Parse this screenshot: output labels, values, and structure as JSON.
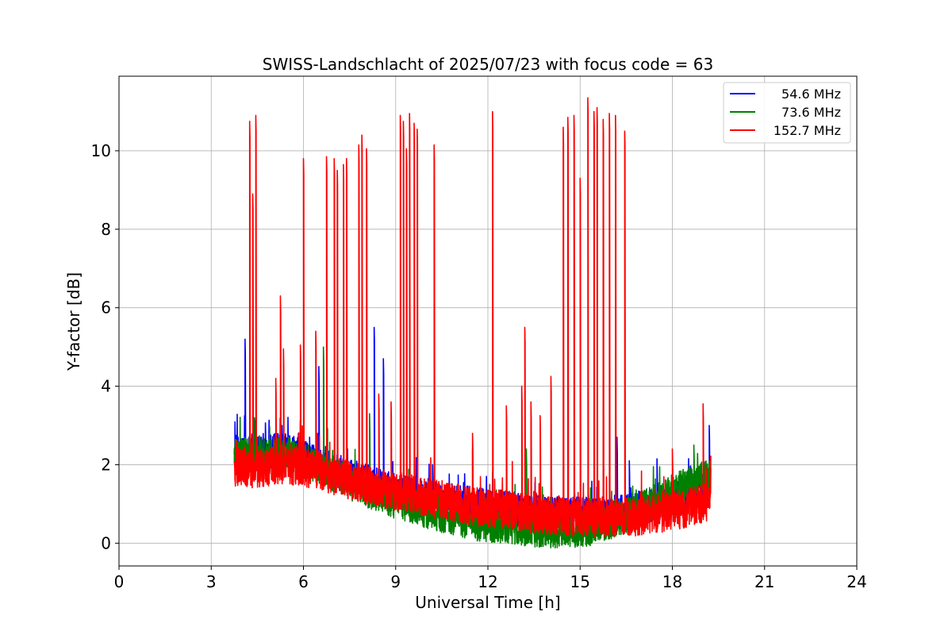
{
  "chart_data": {
    "type": "line",
    "title": "SWISS-Landschlacht of 2025/07/23 with focus code = 63",
    "xlabel": "Universal Time [h]",
    "ylabel": "Y-factor [dB]",
    "xlim": [
      0,
      24
    ],
    "ylim": [
      -0.58,
      11.9
    ],
    "xticks": [
      0,
      3,
      6,
      9,
      12,
      15,
      18,
      21,
      24
    ],
    "yticks": [
      0,
      2,
      4,
      6,
      8,
      10
    ],
    "xtick_labels": [
      "0",
      "3",
      "6",
      "9",
      "12",
      "15",
      "18",
      "21",
      "24"
    ],
    "ytick_labels": [
      "0",
      "2",
      "4",
      "6",
      "8",
      "10"
    ],
    "grid": true,
    "legend_position": "top-right",
    "series": [
      {
        "name": "54.6 MHz",
        "color": "#0000ff",
        "baseline": [
          [
            3.75,
            2.3
          ],
          [
            4.5,
            2.35
          ],
          [
            5.5,
            2.35
          ],
          [
            6.5,
            2.0
          ],
          [
            7.5,
            1.7
          ],
          [
            8.5,
            1.45
          ],
          [
            9.5,
            1.25
          ],
          [
            10.5,
            1.1
          ],
          [
            11.5,
            1.0
          ],
          [
            12.5,
            0.9
          ],
          [
            13.5,
            0.8
          ],
          [
            14.5,
            0.75
          ],
          [
            15.5,
            0.72
          ],
          [
            16.5,
            0.8
          ],
          [
            17.5,
            1.0
          ],
          [
            18.5,
            1.2
          ],
          [
            19.25,
            1.5
          ]
        ],
        "spikes": [
          [
            3.8,
            2.6
          ],
          [
            4.1,
            5.2
          ],
          [
            5.3,
            3.0
          ],
          [
            6.2,
            2.7
          ],
          [
            6.5,
            4.5
          ],
          [
            8.3,
            5.5
          ],
          [
            8.6,
            4.7
          ],
          [
            10.2,
            2.0
          ],
          [
            11.5,
            2.4
          ],
          [
            16.2,
            2.7
          ],
          [
            16.6,
            2.1
          ],
          [
            17.5,
            2.15
          ],
          [
            19.2,
            3.0
          ]
        ],
        "noise": 0.45
      },
      {
        "name": "73.6 MHz",
        "color": "#008000",
        "baseline": [
          [
            3.75,
            2.2
          ],
          [
            4.5,
            2.3
          ],
          [
            5.5,
            2.25
          ],
          [
            6.5,
            1.95
          ],
          [
            7.5,
            1.55
          ],
          [
            8.5,
            1.2
          ],
          [
            9.5,
            0.95
          ],
          [
            10.5,
            0.7
          ],
          [
            11.5,
            0.5
          ],
          [
            12.5,
            0.45
          ],
          [
            13.5,
            0.35
          ],
          [
            14.5,
            0.3
          ],
          [
            15.5,
            0.4
          ],
          [
            16.5,
            0.7
          ],
          [
            17.5,
            1.1
          ],
          [
            18.5,
            1.5
          ],
          [
            19.25,
            1.7
          ]
        ],
        "spikes": [
          [
            6.65,
            5.0
          ],
          [
            8.15,
            3.3
          ],
          [
            13.25,
            2.4
          ],
          [
            18.7,
            2.5
          ]
        ],
        "noise": 0.45
      },
      {
        "name": "152.7 MHz",
        "color": "#ff0000",
        "baseline": [
          [
            3.75,
            1.95
          ],
          [
            4.5,
            1.9
          ],
          [
            5.5,
            2.0
          ],
          [
            6.5,
            1.85
          ],
          [
            7.5,
            1.6
          ],
          [
            8.5,
            1.4
          ],
          [
            9.5,
            1.25
          ],
          [
            10.5,
            1.1
          ],
          [
            11.5,
            0.95
          ],
          [
            12.5,
            0.85
          ],
          [
            13.5,
            0.75
          ],
          [
            14.5,
            0.7
          ],
          [
            15.5,
            0.65
          ],
          [
            16.5,
            0.65
          ],
          [
            17.5,
            0.75
          ],
          [
            18.5,
            0.9
          ],
          [
            19.25,
            1.1
          ]
        ],
        "spikes": [
          [
            4.25,
            10.75
          ],
          [
            4.35,
            8.9
          ],
          [
            4.45,
            10.9
          ],
          [
            5.1,
            4.2
          ],
          [
            5.25,
            6.3
          ],
          [
            5.35,
            4.95
          ],
          [
            5.9,
            5.05
          ],
          [
            6.0,
            9.8
          ],
          [
            6.4,
            5.4
          ],
          [
            6.75,
            9.85
          ],
          [
            7.0,
            9.8
          ],
          [
            7.1,
            9.5
          ],
          [
            7.3,
            9.65
          ],
          [
            7.4,
            9.8
          ],
          [
            7.8,
            10.15
          ],
          [
            7.9,
            10.4
          ],
          [
            8.05,
            10.05
          ],
          [
            8.45,
            3.8
          ],
          [
            8.85,
            3.6
          ],
          [
            9.15,
            10.9
          ],
          [
            9.25,
            10.75
          ],
          [
            9.35,
            10.05
          ],
          [
            9.45,
            10.95
          ],
          [
            9.6,
            10.7
          ],
          [
            9.7,
            10.55
          ],
          [
            10.25,
            10.15
          ],
          [
            11.5,
            2.8
          ],
          [
            12.15,
            11.0
          ],
          [
            12.6,
            3.5
          ],
          [
            13.1,
            4.0
          ],
          [
            13.2,
            5.5
          ],
          [
            13.4,
            3.6
          ],
          [
            13.7,
            3.25
          ],
          [
            14.05,
            4.25
          ],
          [
            14.45,
            10.6
          ],
          [
            14.6,
            10.85
          ],
          [
            14.8,
            10.9
          ],
          [
            15.0,
            9.3
          ],
          [
            15.25,
            11.35
          ],
          [
            15.45,
            11.0
          ],
          [
            15.55,
            11.1
          ],
          [
            15.75,
            10.8
          ],
          [
            15.95,
            10.95
          ],
          [
            16.15,
            10.9
          ],
          [
            16.45,
            10.5
          ],
          [
            18.0,
            2.4
          ],
          [
            19.0,
            3.55
          ]
        ],
        "noise": 0.5
      }
    ]
  }
}
